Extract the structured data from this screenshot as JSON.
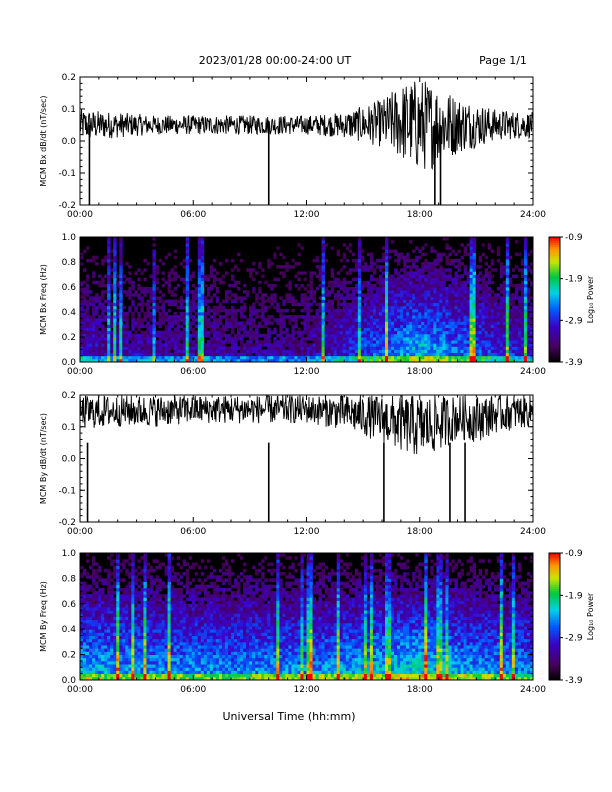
{
  "header": {
    "title": "2023/01/28  00:00-24:00 UT",
    "page": "Page 1/1"
  },
  "x_axis_label": "Universal Time (hh:mm)",
  "chart_data": [
    {
      "type": "line",
      "ylabel": "MCM Bx dB/dt (nT/sec)",
      "xlim": [
        0,
        24
      ],
      "ylim": [
        -0.2,
        0.2
      ],
      "xticks": [
        "00:00",
        "06:00",
        "12:00",
        "18:00",
        "24:00"
      ],
      "yticks": [
        "-0.2",
        "-0.1",
        "0.0",
        "0.1",
        "0.2"
      ],
      "envelope": {
        "hours": [
          0,
          2,
          4,
          6,
          8,
          10,
          12,
          14,
          16,
          17,
          18,
          19,
          20,
          21,
          22,
          24
        ],
        "lower": [
          0.0,
          0.01,
          0.02,
          0.02,
          0.02,
          0.02,
          0.02,
          0.01,
          -0.02,
          -0.06,
          -0.1,
          -0.08,
          -0.04,
          -0.02,
          0.0,
          0.01
        ],
        "upper": [
          0.1,
          0.09,
          0.08,
          0.08,
          0.08,
          0.08,
          0.08,
          0.09,
          0.13,
          0.18,
          0.2,
          0.18,
          0.14,
          0.12,
          0.1,
          0.09
        ]
      },
      "spikes": [
        {
          "hour": 0.5,
          "value": -0.2
        },
        {
          "hour": 10.0,
          "value": -0.2
        },
        {
          "hour": 19.1,
          "value": -0.2
        },
        {
          "hour": 18.8,
          "value": -0.2
        }
      ]
    },
    {
      "type": "heatmap",
      "ylabel": "MCM Bx Freq (Hz)",
      "xlim": [
        0,
        24
      ],
      "ylim": [
        0.0,
        1.0
      ],
      "xticks": [
        "00:00",
        "06:00",
        "12:00",
        "18:00",
        "24:00"
      ],
      "yticks": [
        "0.0",
        "0.2",
        "0.4",
        "0.6",
        "0.8",
        "1.0"
      ],
      "colorbar": {
        "label": "Log₁₀ Power",
        "ticks": [
          "-0.9",
          "-1.9",
          "-2.9",
          "-3.9"
        ],
        "min": -3.9,
        "max": -0.9
      },
      "activity": {
        "hours": [
          0,
          2,
          4,
          6,
          8,
          10,
          12,
          14,
          16,
          18,
          20,
          22,
          24
        ],
        "level": [
          0.35,
          0.3,
          0.28,
          0.28,
          0.27,
          0.25,
          0.28,
          0.38,
          0.5,
          0.62,
          0.52,
          0.42,
          0.38
        ]
      }
    },
    {
      "type": "line",
      "ylabel": "MCM By dB/dt (nT/sec)",
      "xlim": [
        0,
        24
      ],
      "ylim": [
        -0.2,
        0.2
      ],
      "xticks": [
        "00:00",
        "06:00",
        "12:00",
        "18:00",
        "24:00"
      ],
      "yticks": [
        "-0.2",
        "-0.1",
        "0.0",
        "0.1",
        "0.2"
      ],
      "envelope": {
        "hours": [
          0,
          2,
          4,
          6,
          8,
          10,
          12,
          14,
          16,
          17,
          18,
          19,
          20,
          21,
          22,
          24
        ],
        "lower": [
          0.09,
          0.1,
          0.1,
          0.11,
          0.11,
          0.11,
          0.11,
          0.09,
          0.05,
          0.02,
          0.0,
          0.02,
          0.06,
          0.05,
          0.08,
          0.1
        ],
        "upper": [
          0.2,
          0.2,
          0.2,
          0.2,
          0.2,
          0.2,
          0.2,
          0.2,
          0.2,
          0.2,
          0.2,
          0.2,
          0.2,
          0.2,
          0.2,
          0.2
        ]
      },
      "spikes": [
        {
          "hour": 0.4,
          "value": -0.2
        },
        {
          "hour": 10.0,
          "value": -0.2
        },
        {
          "hour": 16.1,
          "value": -0.2
        },
        {
          "hour": 19.6,
          "value": -0.2
        },
        {
          "hour": 20.4,
          "value": -0.2
        }
      ]
    },
    {
      "type": "heatmap",
      "ylabel": "MCM By Freq (Hz)",
      "xlim": [
        0,
        24
      ],
      "ylim": [
        0.0,
        1.0
      ],
      "xticks": [
        "00:00",
        "06:00",
        "12:00",
        "18:00",
        "24:00"
      ],
      "yticks": [
        "0.0",
        "0.2",
        "0.4",
        "0.6",
        "0.8",
        "1.0"
      ],
      "colorbar": {
        "label": "Log₁₀ Power",
        "ticks": [
          "-0.9",
          "-1.9",
          "-2.9",
          "-3.9"
        ],
        "min": -3.9,
        "max": -0.9
      },
      "activity": {
        "hours": [
          0,
          2,
          4,
          6,
          8,
          10,
          12,
          14,
          16,
          18,
          20,
          22,
          24
        ],
        "level": [
          0.6,
          0.58,
          0.56,
          0.55,
          0.55,
          0.55,
          0.55,
          0.58,
          0.62,
          0.66,
          0.6,
          0.55,
          0.52
        ]
      }
    }
  ]
}
